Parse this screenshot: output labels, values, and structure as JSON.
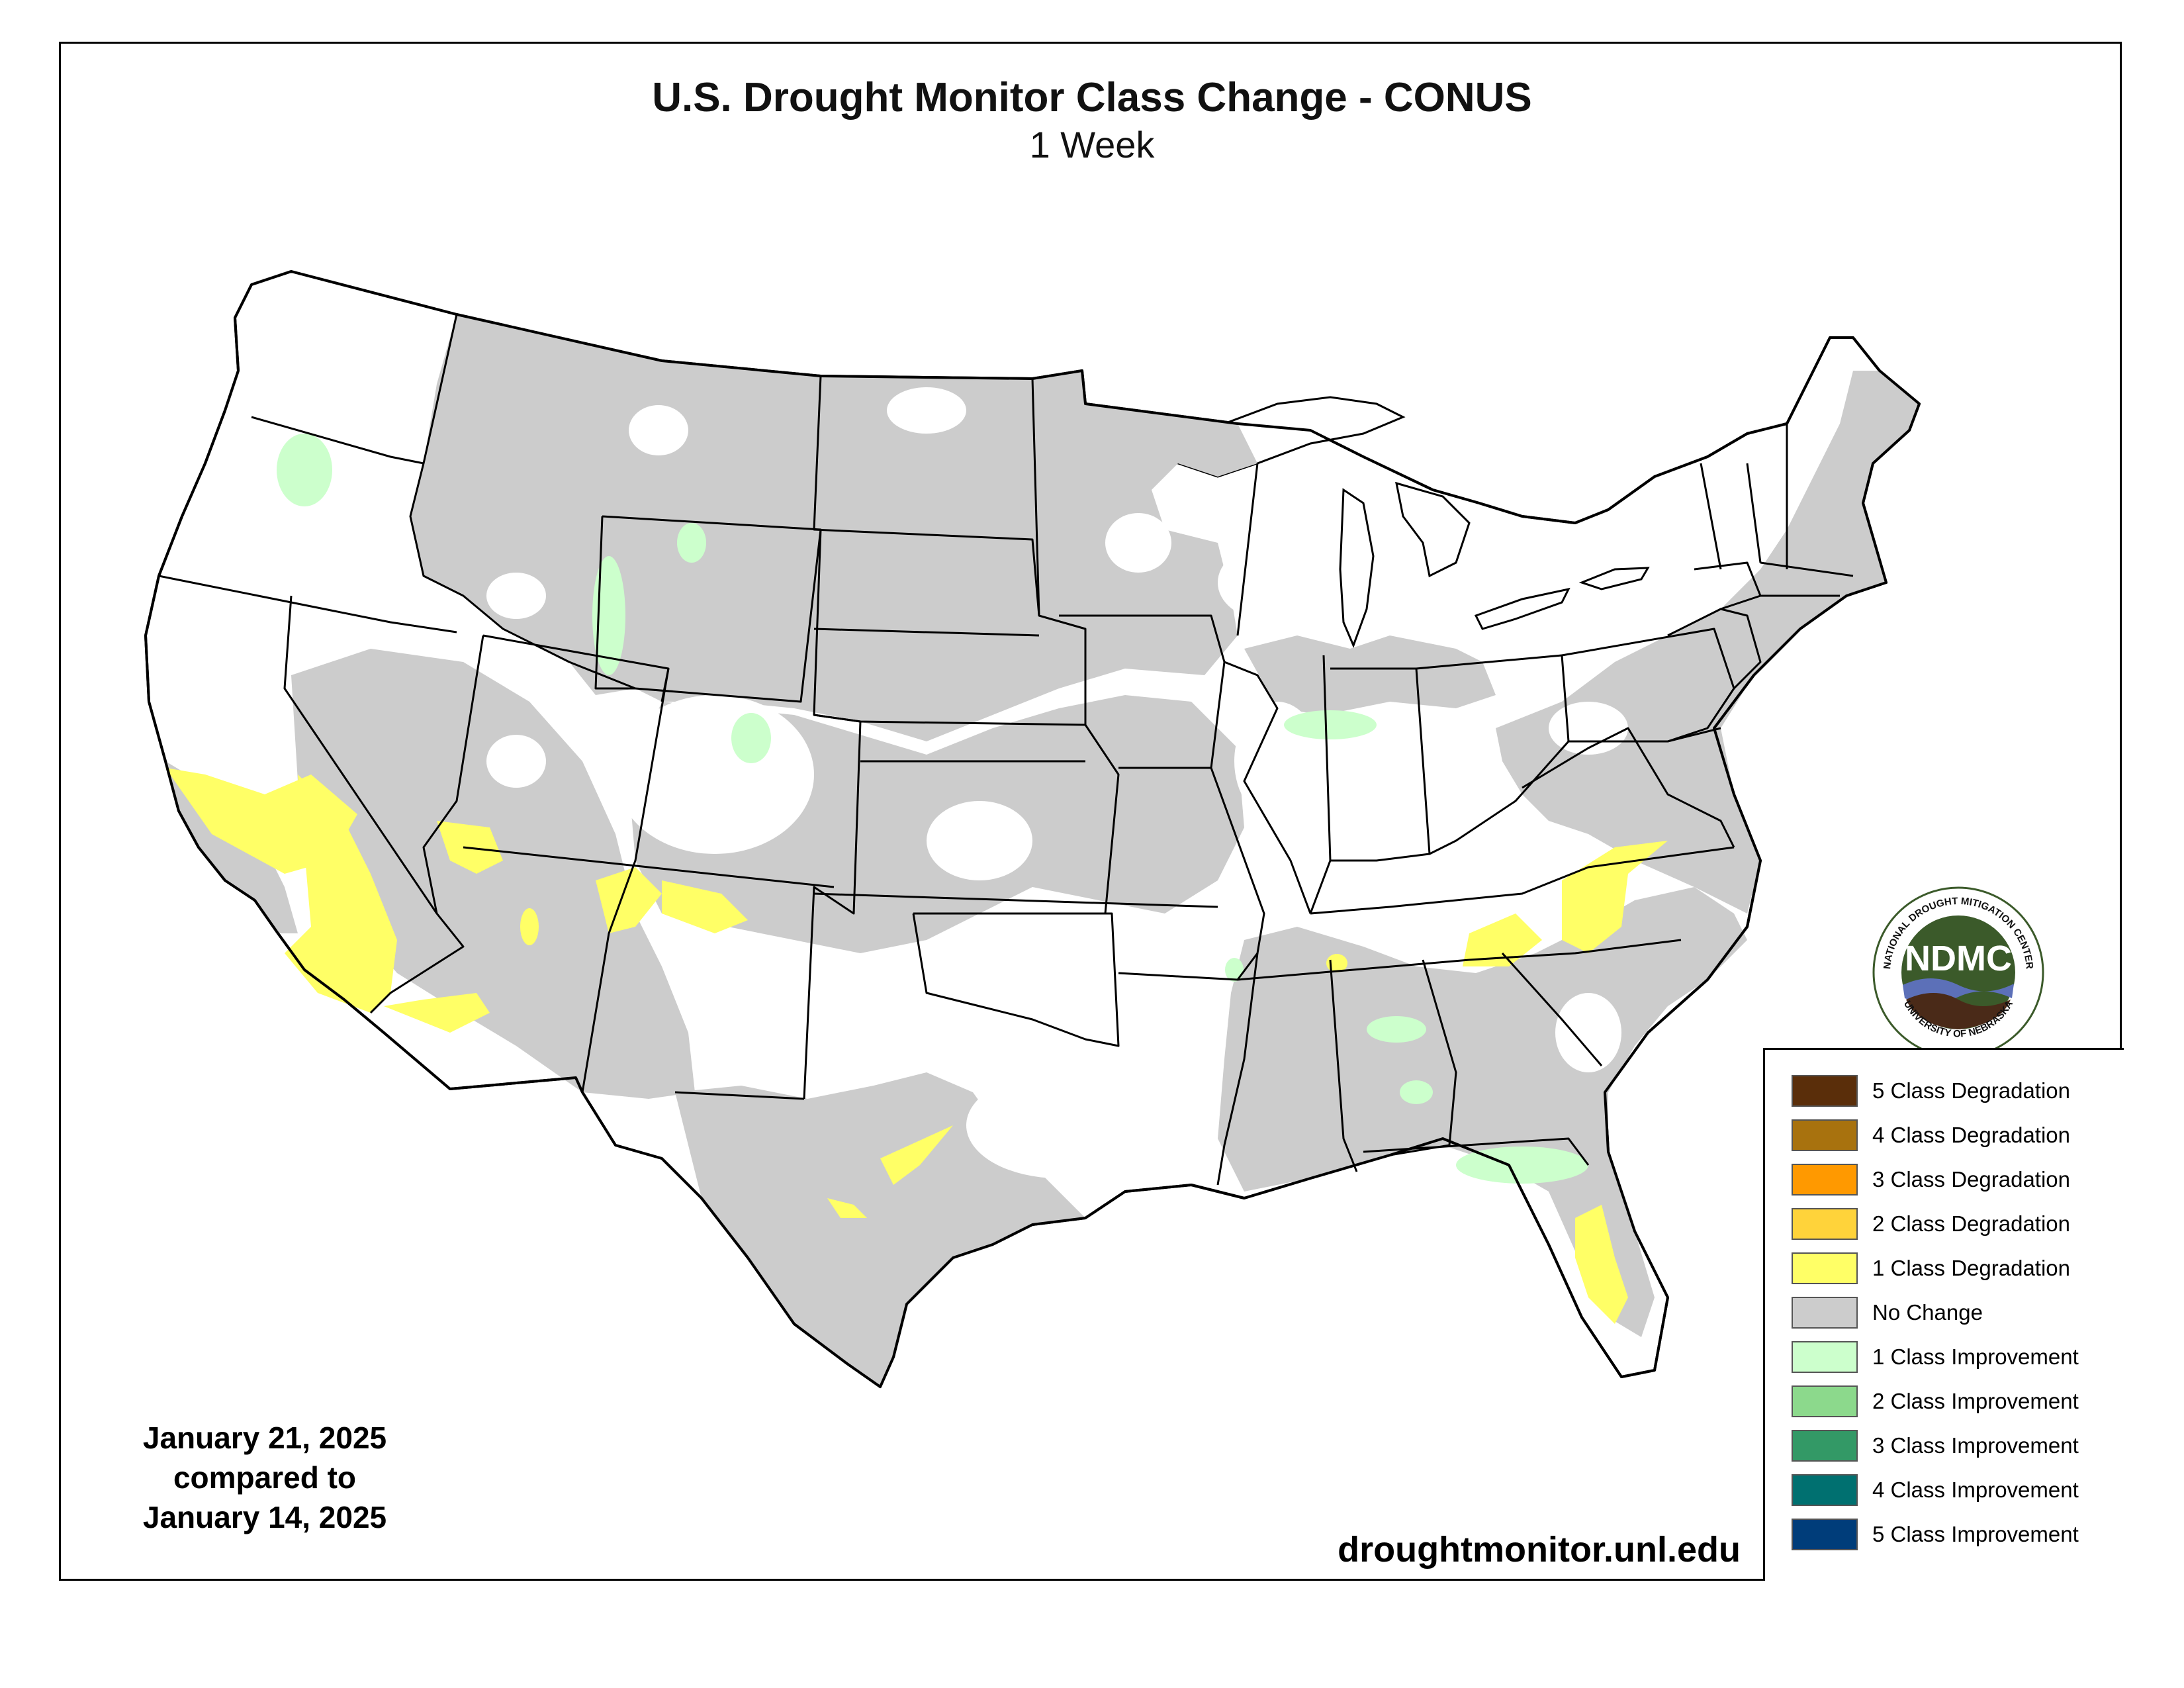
{
  "title": "U.S. Drought Monitor Class Change - CONUS",
  "subtitle": "1 Week",
  "date_lines": [
    "January 21, 2025",
    "compared to",
    "January 14, 2025"
  ],
  "source_url": "droughtmonitor.unl.edu",
  "logo": {
    "acronym": "NDMC",
    "ring_top": "NATIONAL DROUGHT MITIGATION CENTER",
    "ring_bottom": "UNIVERSITY OF NEBRASKA",
    "colors": {
      "ring": "#ffffff",
      "disk": "#3b5a2a",
      "water": "#5c70b8",
      "soil": "#4a2a18"
    }
  },
  "legend": [
    {
      "label": "5 Class Degradation",
      "color": "#5a2e0a"
    },
    {
      "label": "4 Class Degradation",
      "color": "#a8720e"
    },
    {
      "label": "3 Class Degradation",
      "color": "#ff9900"
    },
    {
      "label": "2 Class Degradation",
      "color": "#ffd33a"
    },
    {
      "label": "1 Class Degradation",
      "color": "#ffff66"
    },
    {
      "label": "No Change",
      "color": "#cccccc"
    },
    {
      "label": "1 Class Improvement",
      "color": "#ccffcc"
    },
    {
      "label": "2 Class Improvement",
      "color": "#8cd98c"
    },
    {
      "label": "3 Class Improvement",
      "color": "#339966"
    },
    {
      "label": "4 Class Improvement",
      "color": "#007070"
    },
    {
      "label": "5 Class Improvement",
      "color": "#003d7a"
    }
  ]
}
